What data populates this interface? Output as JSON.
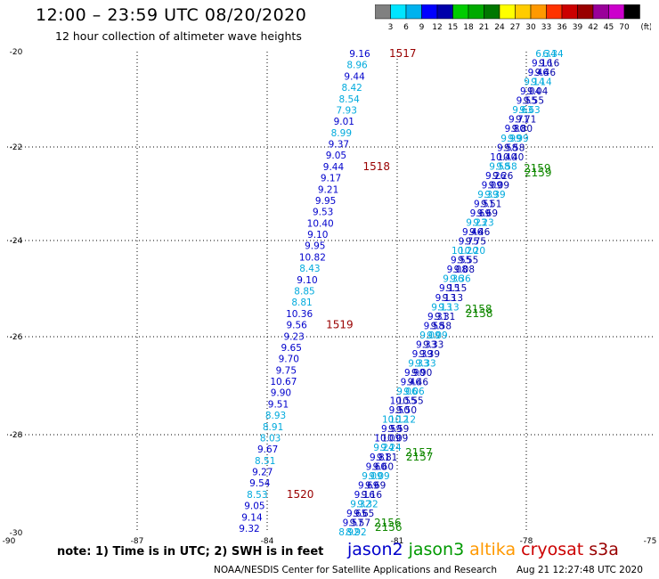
{
  "title": "12:00 – 23:59 UTC 08/20/2020",
  "subtitle": "12 hour collection of altimeter wave heights",
  "note": "note: 1) Time is in UTC; 2) SWH is in feet",
  "footer": "NOAA/NESDIS Center for Satellite Applications and Research",
  "timestamp": "Aug 21 12:27:48 UTC 2020",
  "colorbar": {
    "ticks": [
      "3",
      "6",
      "9",
      "12",
      "15",
      "18",
      "21",
      "24",
      "27",
      "30",
      "33",
      "36",
      "39",
      "42",
      "45",
      "70"
    ],
    "unit": "(ft)",
    "colors": [
      "#808080",
      "#00e5ff",
      "#00b2ee",
      "#0000ff",
      "#0000aa",
      "#00cc00",
      "#00aa00",
      "#007700",
      "#ffff00",
      "#ffcc00",
      "#ff9900",
      "#ff3300",
      "#cc0000",
      "#990000",
      "#990099",
      "#cc00cc",
      "#000000"
    ]
  },
  "axes": {
    "x_ticks": [
      "-90",
      "-87",
      "-84",
      "-81",
      "-78",
      "-75"
    ],
    "y_ticks": [
      "-20",
      "-22",
      "-24",
      "-26",
      "-28",
      "-30"
    ]
  },
  "missions": [
    {
      "name": "jason2",
      "color": "#0000cc"
    },
    {
      "name": "jason3",
      "color": "#009900"
    },
    {
      "name": "altika",
      "color": "#ff9900"
    },
    {
      "name": "cryosat",
      "color": "#cc0000"
    },
    {
      "name": "s3a",
      "color": "#990000"
    }
  ],
  "left_track": [
    {
      "v": "9.16",
      "c": "#0000cc"
    },
    {
      "v": "8.96",
      "c": "#00aadd"
    },
    {
      "v": "9.44",
      "c": "#0000cc"
    },
    {
      "v": "8.42",
      "c": "#00aadd"
    },
    {
      "v": "8.54",
      "c": "#00aadd"
    },
    {
      "v": "7.93",
      "c": "#00aadd"
    },
    {
      "v": "9.01",
      "c": "#0000cc"
    },
    {
      "v": "8.99",
      "c": "#00aadd"
    },
    {
      "v": "9.37",
      "c": "#0000cc"
    },
    {
      "v": "9.05",
      "c": "#0000cc"
    },
    {
      "v": "9.44",
      "c": "#0000cc"
    },
    {
      "v": "9.17",
      "c": "#0000cc"
    },
    {
      "v": "9.21",
      "c": "#0000cc"
    },
    {
      "v": "9.95",
      "c": "#0000cc"
    },
    {
      "v": "9.53",
      "c": "#0000cc"
    },
    {
      "v": "10.40",
      "c": "#0000cc"
    },
    {
      "v": "9.10",
      "c": "#0000cc"
    },
    {
      "v": "9.95",
      "c": "#0000cc"
    },
    {
      "v": "10.82",
      "c": "#0000cc"
    },
    {
      "v": "8.43",
      "c": "#00aadd"
    },
    {
      "v": "9.10",
      "c": "#0000cc"
    },
    {
      "v": "8.85",
      "c": "#00aadd"
    },
    {
      "v": "8.81",
      "c": "#00aadd"
    },
    {
      "v": "10.36",
      "c": "#0000cc"
    },
    {
      "v": "9.56",
      "c": "#0000cc"
    },
    {
      "v": "9.23",
      "c": "#0000cc"
    },
    {
      "v": "9.65",
      "c": "#0000cc"
    },
    {
      "v": "9.70",
      "c": "#0000cc"
    },
    {
      "v": "9.75",
      "c": "#0000cc"
    },
    {
      "v": "10.67",
      "c": "#0000cc"
    },
    {
      "v": "9.90",
      "c": "#0000cc"
    },
    {
      "v": "9.51",
      "c": "#0000cc"
    },
    {
      "v": "8.93",
      "c": "#00aadd"
    },
    {
      "v": "8.91",
      "c": "#00aadd"
    },
    {
      "v": "8.03",
      "c": "#00aadd"
    },
    {
      "v": "9.67",
      "c": "#0000cc"
    },
    {
      "v": "8.51",
      "c": "#00aadd"
    },
    {
      "v": "9.27",
      "c": "#0000cc"
    },
    {
      "v": "9.54",
      "c": "#0000cc"
    },
    {
      "v": "8.53",
      "c": "#00aadd"
    },
    {
      "v": "9.05",
      "c": "#0000cc"
    },
    {
      "v": "9.14",
      "c": "#0000cc"
    },
    {
      "v": "9.32",
      "c": "#0000cc"
    }
  ],
  "left_times": [
    {
      "t": "1517",
      "i": 0
    },
    {
      "t": "1518",
      "i": 10
    },
    {
      "t": "1519",
      "i": 24
    },
    {
      "t": "1520",
      "i": 39
    }
  ],
  "right_track_a": [
    "6.34",
    "9.16",
    "9.46",
    "9.14",
    "9.04",
    "9.55",
    "9.63",
    "9.71",
    "9.80",
    "9.99",
    "9.58",
    "10.40",
    "9.58",
    "9.26",
    "9.09",
    "9.39",
    "9.51",
    "9.69",
    "9.23",
    "9.46",
    "9.75",
    "10.20",
    "9.55",
    "9.08",
    "9.36",
    "9.15",
    "9.13",
    "9.13",
    "9.31",
    "9.58",
    "9.09",
    "9.33",
    "9.39",
    "9.33",
    "9.90",
    "9.46",
    "9.06",
    "10.55",
    "9.50",
    "10.12",
    "9.59",
    "10.09",
    "9.24",
    "9.81",
    "9.60",
    "9.09",
    "9.69",
    "9.16",
    "9.32",
    "9.65",
    "9.57",
    "8.92"
  ],
  "right_track_b": [
    "6.34",
    "9.16",
    "9.46",
    "9.14",
    "9.04",
    "9.55",
    "9.63",
    "9.71",
    "9.80",
    "9.99",
    "9.58",
    "10.40",
    "9.58",
    "9.26",
    "9.09",
    "9.39",
    "9.51",
    "9.69",
    "9.23",
    "9.46",
    "9.75",
    "10.20",
    "9.55",
    "9.08",
    "9.36",
    "9.15",
    "9.13",
    "9.13",
    "9.31",
    "9.58",
    "9.09",
    "9.33",
    "9.39",
    "9.33",
    "9.90",
    "9.46",
    "9.06",
    "10.55",
    "9.50",
    "10.12",
    "9.59",
    "10.09",
    "9.24",
    "9.81",
    "9.60",
    "9.09",
    "9.69",
    "9.16",
    "9.32",
    "9.65",
    "9.57",
    "8.92"
  ],
  "right_times": [
    "2159",
    "2158",
    "2157",
    "2156"
  ]
}
